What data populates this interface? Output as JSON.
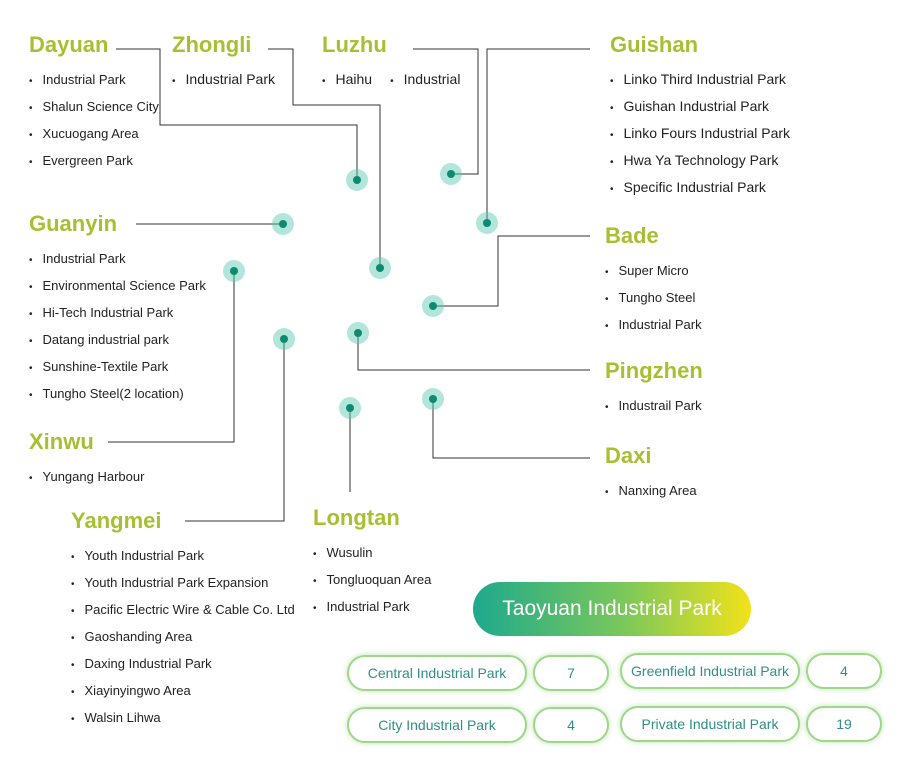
{
  "districts": {
    "dayuan": {
      "name": "Dayuan",
      "parks": [
        "Industrial Park",
        "Shalun Science City",
        "Xucuogang Area",
        "Evergreen Park"
      ]
    },
    "zhongli": {
      "name": "Zhongli",
      "parks": [
        "Industrial Park"
      ]
    },
    "luzhu": {
      "name": "Luzhu",
      "parks": [
        "Haihu",
        "Industrial"
      ]
    },
    "guishan": {
      "name": "Guishan",
      "parks": [
        "Linko Third Industrial Park",
        "Guishan Industrial Park",
        "Linko Fours Industrial Park",
        "Hwa Ya Technology Park",
        "Specific Industrial Park"
      ]
    },
    "guanyin": {
      "name": "Guanyin",
      "parks": [
        "Industrial Park",
        "Environmental Science Park",
        "Hi-Tech Industrial Park",
        "Datang industrial park",
        "Sunshine-Textile Park",
        "Tungho Steel(2 location)"
      ]
    },
    "bade": {
      "name": "Bade",
      "parks": [
        "Super Micro",
        "Tungho Steel",
        "Industrial Park"
      ]
    },
    "pingzhen": {
      "name": "Pingzhen",
      "parks": [
        "Industrail Park"
      ]
    },
    "xinwu": {
      "name": "Xinwu",
      "parks": [
        "Yungang Harbour"
      ]
    },
    "daxi": {
      "name": "Daxi",
      "parks": [
        "Nanxing Area"
      ]
    },
    "yangmei": {
      "name": "Yangmei",
      "parks": [
        "Youth Industrial Park",
        "Youth Industrial Park Expansion",
        "Pacific Electric Wire & Cable Co. Ltd",
        "Gaoshanding Area",
        "Daxing Industrial Park",
        "Xiayinyingwo Area",
        "Walsin Lihwa"
      ]
    },
    "longtan": {
      "name": "Longtan",
      "parks": [
        "Wusulin",
        "Tongluoquan Area",
        "Industrial Park"
      ]
    }
  },
  "title": "Taoyuan Industrial Park",
  "stats": [
    {
      "label": "Central Industrial Park",
      "value": "7"
    },
    {
      "label": "Greenfield Industrial Park",
      "value": "4"
    },
    {
      "label": "City Industrial Park",
      "value": "4"
    },
    {
      "label": "Private Industrial Park",
      "value": "19"
    }
  ],
  "colors": {
    "district": "#a8bf32",
    "map_start": "#1ea98c",
    "map_end": "#f2e21a",
    "stat_text": "#2f8f86",
    "stat_border": "#9ed78a"
  }
}
